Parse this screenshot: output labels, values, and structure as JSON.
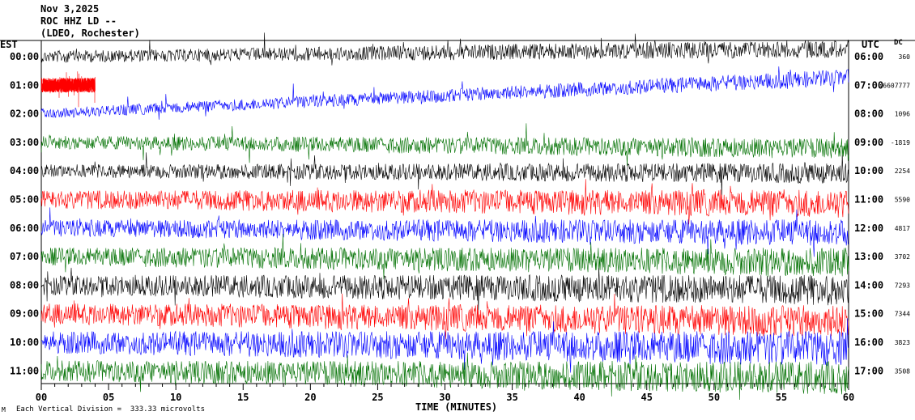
{
  "header": {
    "date": "Nov 3,2025",
    "station": "ROC HHZ LD --",
    "network": "(LDEO, Rochester)"
  },
  "chart_data": {
    "type": "line",
    "title": "Nov 3,2025",
    "xlabel": "TIME (MINUTES)",
    "left_axis_label": "EST",
    "right_axis_label": "UTC",
    "dc_label": "DC",
    "xlim": [
      0,
      60
    ],
    "x_ticks": [
      "00",
      "05",
      "10",
      "15",
      "20",
      "25",
      "30",
      "35",
      "40",
      "45",
      "50",
      "55",
      "60"
    ],
    "est_hours": [
      "00:00",
      "01:00",
      "02:00",
      "03:00",
      "04:00",
      "05:00",
      "06:00",
      "07:00",
      "08:00",
      "09:00",
      "10:00",
      "11:00"
    ],
    "utc_hours": [
      "06:00",
      "07:00",
      "08:00",
      "09:00",
      "10:00",
      "11:00",
      "12:00",
      "13:00",
      "14:00",
      "15:00",
      "16:00",
      "17:00"
    ],
    "dc_offsets": [
      "360",
      "-6607777",
      "1096",
      "-1819",
      "2254",
      "5590",
      "4817",
      "3702",
      "7293",
      "7344",
      "3823",
      "3508"
    ],
    "trace_colors": [
      "#000000",
      "#ff0000",
      "#0000ff",
      "#007000"
    ],
    "series": [
      {
        "hour_index": 0,
        "color": "#000000",
        "amplitude": 0.9,
        "drift": -1.0,
        "gap_start": null
      },
      {
        "hour_index": 1,
        "color": "#ff0000",
        "amplitude": 1.1,
        "drift": 0.0,
        "gap_start": 4
      },
      {
        "hour_index": 2,
        "color": "#0000ff",
        "amplitude": 0.8,
        "drift": -4.5,
        "gap_start": null
      },
      {
        "hour_index": 3,
        "color": "#007000",
        "amplitude": 1.0,
        "drift": 0.8,
        "gap_start": null
      },
      {
        "hour_index": 4,
        "color": "#000000",
        "amplitude": 1.0,
        "drift": 0.3,
        "gap_start": null
      },
      {
        "hour_index": 5,
        "color": "#ff0000",
        "amplitude": 1.4,
        "drift": 0.5,
        "gap_start": null
      },
      {
        "hour_index": 6,
        "color": "#0000ff",
        "amplitude": 1.3,
        "drift": 0.6,
        "gap_start": null
      },
      {
        "hour_index": 7,
        "color": "#007000",
        "amplitude": 1.4,
        "drift": 0.7,
        "gap_start": null
      },
      {
        "hour_index": 8,
        "color": "#000000",
        "amplitude": 1.5,
        "drift": 0.6,
        "gap_start": null
      },
      {
        "hour_index": 9,
        "color": "#ff0000",
        "amplitude": 1.6,
        "drift": 1.0,
        "gap_start": null
      },
      {
        "hour_index": 10,
        "color": "#0000ff",
        "amplitude": 1.7,
        "drift": 0.8,
        "gap_start": null
      },
      {
        "hour_index": 11,
        "color": "#007000",
        "amplitude": 1.6,
        "drift": 0.9,
        "gap_start": null
      }
    ],
    "scale_note": "Each Vertical Division =  333.33 microvolts",
    "corner_mark": "M"
  }
}
